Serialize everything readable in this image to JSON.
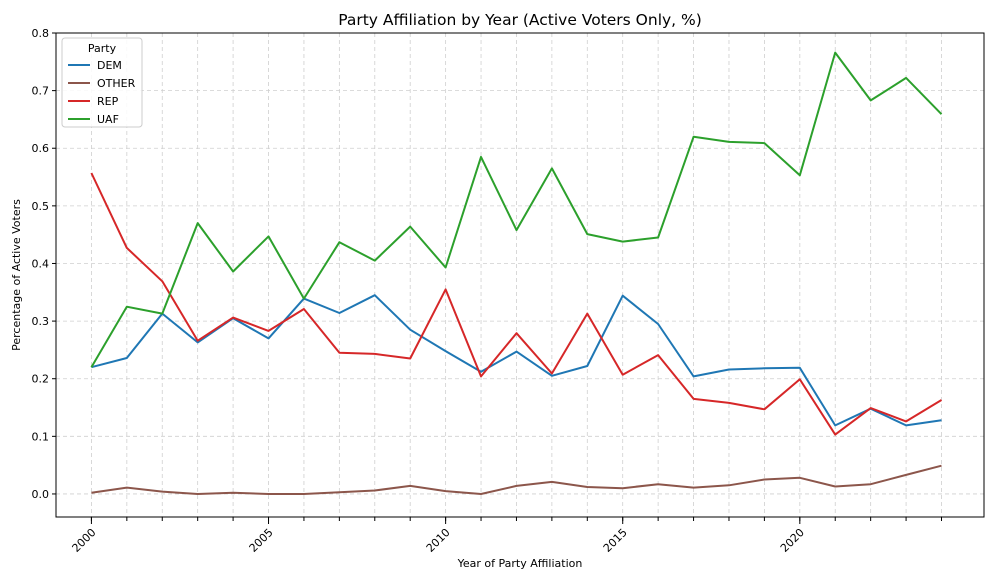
{
  "chart_data": {
    "type": "line",
    "title": "Party Affiliation by Year (Active Voters Only, %)",
    "xlabel": "Year of Party Affiliation",
    "ylabel": "Percentage of Active Voters",
    "x": [
      2000,
      2001,
      2002,
      2003,
      2004,
      2005,
      2006,
      2007,
      2008,
      2009,
      2010,
      2011,
      2012,
      2013,
      2014,
      2015,
      2016,
      2017,
      2018,
      2019,
      2020,
      2021,
      2022,
      2023,
      2024
    ],
    "xlim": [
      1999.0,
      2025.2
    ],
    "ylim": [
      -0.04,
      0.8
    ],
    "x_ticks": [
      2000,
      2005,
      2010,
      2015,
      2020
    ],
    "x_tick_labels": [
      "2000",
      "2005",
      "2010",
      "2015",
      "2020"
    ],
    "y_ticks": [
      0.0,
      0.1,
      0.2,
      0.3,
      0.4,
      0.5,
      0.6,
      0.7,
      0.8
    ],
    "y_tick_labels": [
      "0.0",
      "0.1",
      "0.2",
      "0.3",
      "0.4",
      "0.5",
      "0.6",
      "0.7",
      "0.8"
    ],
    "grid": true,
    "legend": {
      "title": "Party",
      "placement": "top-left"
    },
    "series": [
      {
        "name": "DEM",
        "color": "#1f77b4",
        "values": [
          0.22,
          0.236,
          0.313,
          0.263,
          0.305,
          0.27,
          0.339,
          0.314,
          0.345,
          0.285,
          0.248,
          0.212,
          0.247,
          0.205,
          0.222,
          0.344,
          0.295,
          0.204,
          0.216,
          0.218,
          0.219,
          0.119,
          0.148,
          0.119,
          0.128
        ]
      },
      {
        "name": "OTHER",
        "color": "#8c564b",
        "values": [
          0.002,
          0.011,
          0.004,
          0.0,
          0.002,
          0.0,
          0.0,
          0.003,
          0.006,
          0.014,
          0.005,
          0.0,
          0.014,
          0.021,
          0.012,
          0.01,
          0.017,
          0.011,
          0.015,
          0.025,
          0.028,
          0.013,
          0.017,
          0.033,
          0.049
        ]
      },
      {
        "name": "REP",
        "color": "#d62728",
        "values": [
          0.557,
          0.427,
          0.369,
          0.266,
          0.306,
          0.283,
          0.321,
          0.245,
          0.243,
          0.235,
          0.355,
          0.204,
          0.279,
          0.209,
          0.313,
          0.207,
          0.241,
          0.165,
          0.158,
          0.147,
          0.199,
          0.103,
          0.149,
          0.126,
          0.163
        ]
      },
      {
        "name": "UAF",
        "color": "#2ca02c",
        "values": [
          0.22,
          0.325,
          0.313,
          0.47,
          0.386,
          0.447,
          0.339,
          0.437,
          0.405,
          0.464,
          0.393,
          0.585,
          0.458,
          0.565,
          0.451,
          0.438,
          0.445,
          0.62,
          0.611,
          0.609,
          0.553,
          0.766,
          0.683,
          0.722,
          0.659
        ]
      }
    ]
  }
}
